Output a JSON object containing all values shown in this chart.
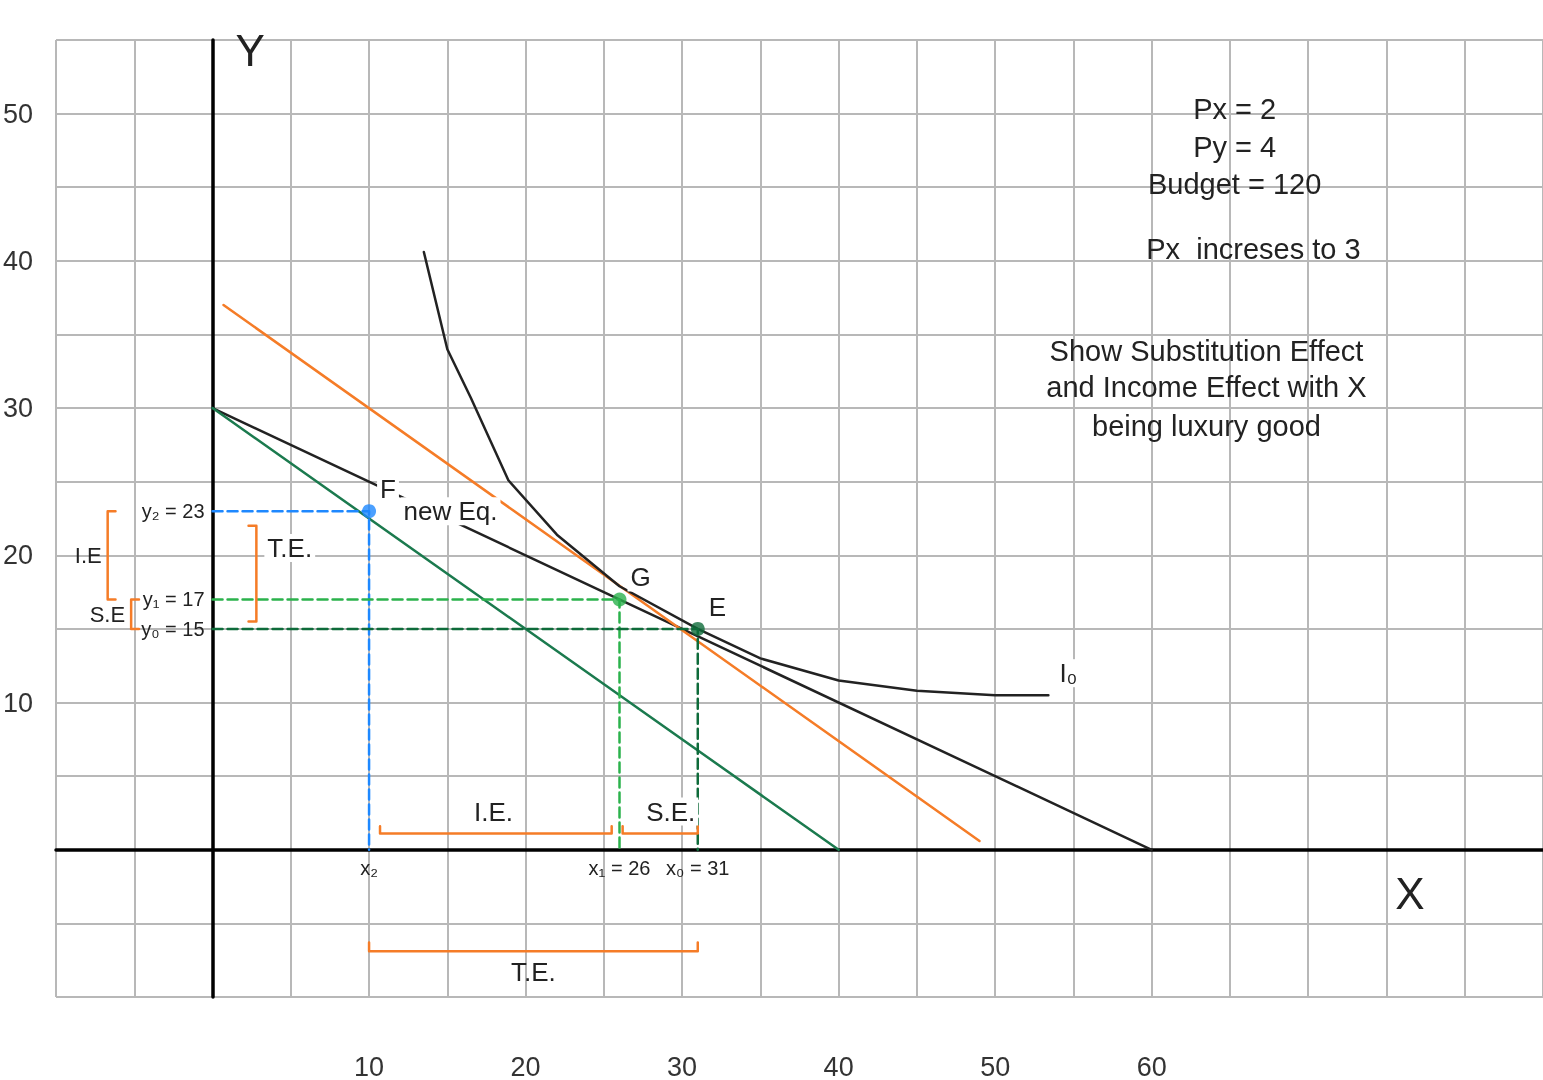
{
  "chart_data": {
    "type": "line",
    "xlabel": "X",
    "ylabel": "Y",
    "xlim": [
      -10,
      85
    ],
    "ylim": [
      -10,
      55
    ],
    "xticks": [
      {
        "value": -10,
        "label": null
      },
      {
        "value": -5,
        "label": null
      },
      {
        "value": 0,
        "label": null
      },
      {
        "value": 5,
        "label": null
      },
      10,
      {
        "value": 15,
        "label": null
      },
      20,
      {
        "value": 25,
        "label": null
      },
      30,
      {
        "value": 35,
        "label": null
      },
      40,
      {
        "value": 45,
        "label": null
      },
      50,
      {
        "value": 55,
        "label": null
      },
      60,
      {
        "value": 65,
        "label": null
      },
      {
        "value": 70,
        "label": null
      },
      {
        "value": 75,
        "label": null
      },
      {
        "value": 80,
        "label": null
      },
      {
        "value": 85,
        "label": null
      }
    ],
    "yticks": [
      {
        "value": -10,
        "label": null
      },
      {
        "value": -5,
        "label": null
      },
      {
        "value": 0,
        "label": null
      },
      {
        "value": 5,
        "label": null
      },
      10,
      {
        "value": 15,
        "label": null
      },
      20,
      {
        "value": 25,
        "label": null
      },
      30,
      {
        "value": 35,
        "label": null
      },
      40,
      {
        "value": 45,
        "label": null
      },
      50,
      {
        "value": 55,
        "label": null
      }
    ],
    "grid": true,
    "series": [
      {
        "color": "#222222",
        "x": [
          0,
          60
        ],
        "values": [
          30,
          0
        ]
      },
      {
        "color": "#1b7a4e",
        "x": [
          0,
          40
        ],
        "values": [
          30,
          0
        ]
      },
      {
        "color": "#f57c27",
        "x": [
          0.7,
          49
        ],
        "values": [
          37,
          0.6
        ]
      },
      {
        "color": "#222222",
        "x": [
          13.5,
          15,
          16.5,
          18.9,
          22,
          26,
          31,
          35,
          40,
          45,
          50,
          53.4
        ],
        "values": [
          40.6,
          34,
          30.7,
          25.1,
          21.4,
          17.9,
          15,
          13,
          11.5,
          10.8,
          10.5,
          10.5
        ]
      },
      {
        "type": "line",
        "color": "#1e88ff",
        "line_style": "dashed",
        "x": [
          0,
          10,
          10
        ],
        "values": [
          23,
          23,
          0
        ]
      },
      {
        "type": "line",
        "color": "#2bb24c",
        "line_style": "dashed",
        "x": [
          0,
          26,
          26
        ],
        "values": [
          17,
          17,
          0
        ]
      },
      {
        "type": "line",
        "color": "#0e6b3a",
        "line_style": "dashed",
        "x": [
          0,
          31,
          31
        ],
        "values": [
          15,
          15,
          0
        ]
      },
      {
        "type": "scatter",
        "marker": "circle",
        "color": "#1e88ff",
        "x": [
          10
        ],
        "values": [
          23
        ]
      },
      {
        "type": "scatter",
        "marker": "circle",
        "color": "#2bb24c",
        "x": [
          26
        ],
        "values": [
          17
        ]
      },
      {
        "type": "scatter",
        "marker": "circle",
        "color": "#0e6b3a",
        "x": [
          31
        ],
        "values": [
          15
        ]
      },
      {
        "type": "line",
        "color": "#f57c27",
        "x": [
          10.7,
          10.7,
          25.5,
          25.5
        ],
        "values": [
          1.6,
          1.1,
          1.1,
          1.6
        ]
      },
      {
        "type": "line",
        "color": "#f57c27",
        "x": [
          26.2,
          26.2,
          31,
          31
        ],
        "values": [
          1.6,
          1.1,
          1.1,
          1.6
        ]
      },
      {
        "type": "line",
        "color": "#f57c27",
        "x": [
          10,
          10,
          31,
          31
        ],
        "values": [
          -6.3,
          -6.9,
          -6.9,
          -6.3
        ]
      },
      {
        "type": "line",
        "color": "#f57c27",
        "x": [
          -6.2,
          -6.7,
          -6.7,
          -6.2
        ],
        "values": [
          23,
          23,
          17,
          17
        ]
      },
      {
        "type": "line",
        "color": "#f57c27",
        "x": [
          -4.7,
          -5.2,
          -5.2,
          -4.7
        ],
        "values": [
          17,
          17,
          15,
          15
        ]
      },
      {
        "type": "line",
        "color": "#f57c27",
        "x": [
          2.3,
          2.8,
          2.8,
          2.3
        ],
        "values": [
          22,
          22,
          15.5,
          15.5
        ]
      }
    ],
    "annotations": [
      "Px = 2",
      "Py = 4",
      "Budget = 120",
      "Px  increses to 3",
      "Show Substitution Effect",
      "and Income Effect with X",
      "being luxury good",
      {
        "text": "F",
        "x": 10,
        "y": 23
      },
      {
        "text": "new Eq.",
        "x": 11.5,
        "y": 21.5
      },
      {
        "text": "G",
        "x": 26,
        "y": 17
      },
      {
        "text": "E",
        "x": 31,
        "y": 15
      },
      {
        "text": "I₀",
        "x": 53.4,
        "y": 10.5
      },
      {
        "text": "y₂ = 23",
        "x": 0,
        "y": 23
      },
      {
        "text": "y₁ = 17",
        "x": 0,
        "y": 17
      },
      {
        "text": "y₀ = 15",
        "x": 0,
        "y": 15
      },
      {
        "text": "x₂",
        "x": 10,
        "y": 0
      },
      {
        "text": "x₁ = 26",
        "x": 26,
        "y": 0
      },
      {
        "text": "x₀ = 31",
        "x": 31,
        "y": 0
      },
      {
        "text": "I.E.",
        "x": 16,
        "y": 1.1
      },
      {
        "text": "S.E.",
        "x": 27,
        "y": 1.1
      },
      {
        "text": "T.E.",
        "x": 20.5,
        "y": -6.9
      },
      {
        "text": "I.E",
        "x": -6.7,
        "y": 20
      },
      {
        "text": "S.E",
        "x": -5.2,
        "y": 16
      },
      {
        "text": "T.E.",
        "x": 2.8,
        "y": 19
      }
    ]
  }
}
